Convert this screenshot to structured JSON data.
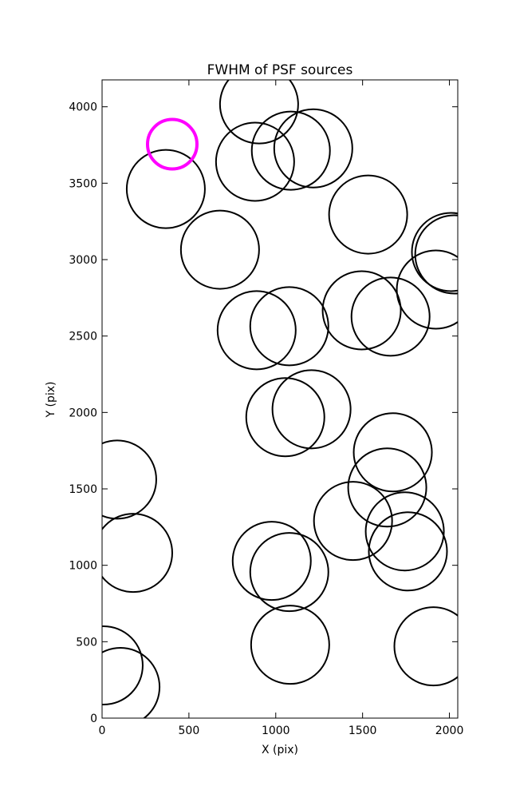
{
  "chart_data": {
    "type": "scatter",
    "title": "FWHM of PSF sources",
    "xlabel": "X (pix)",
    "ylabel": "Y (pix)",
    "xlim": [
      0,
      2048
    ],
    "ylim": [
      0,
      4176
    ],
    "xticks": [
      0,
      500,
      1000,
      1500,
      2000
    ],
    "yticks": [
      0,
      500,
      1000,
      1500,
      2000,
      2500,
      3000,
      3500,
      4000
    ],
    "series": [
      {
        "color": "#000000",
        "x": [
          904,
          881,
          1087,
          1216,
          367,
          679,
          1532,
          2009,
          2028,
          1922,
          890,
          1078,
          1495,
          1661,
          1055,
          1206,
          87,
          1674,
          1642,
          1445,
          1743,
          1761,
          179,
          977,
          1078,
          1083,
          1908,
          9,
          106
        ],
        "y": [
          4016,
          3640,
          3713,
          3728,
          3462,
          3065,
          3295,
          3050,
          3034,
          2804,
          2538,
          2564,
          2668,
          2627,
          1969,
          2021,
          1561,
          1739,
          1509,
          1290,
          1222,
          1091,
          1081,
          1029,
          956,
          480,
          470,
          345,
          204
        ]
      },
      {
        "color": "#ff00ff",
        "x": [
          404
        ],
        "y": [
          3755
        ]
      }
    ]
  }
}
